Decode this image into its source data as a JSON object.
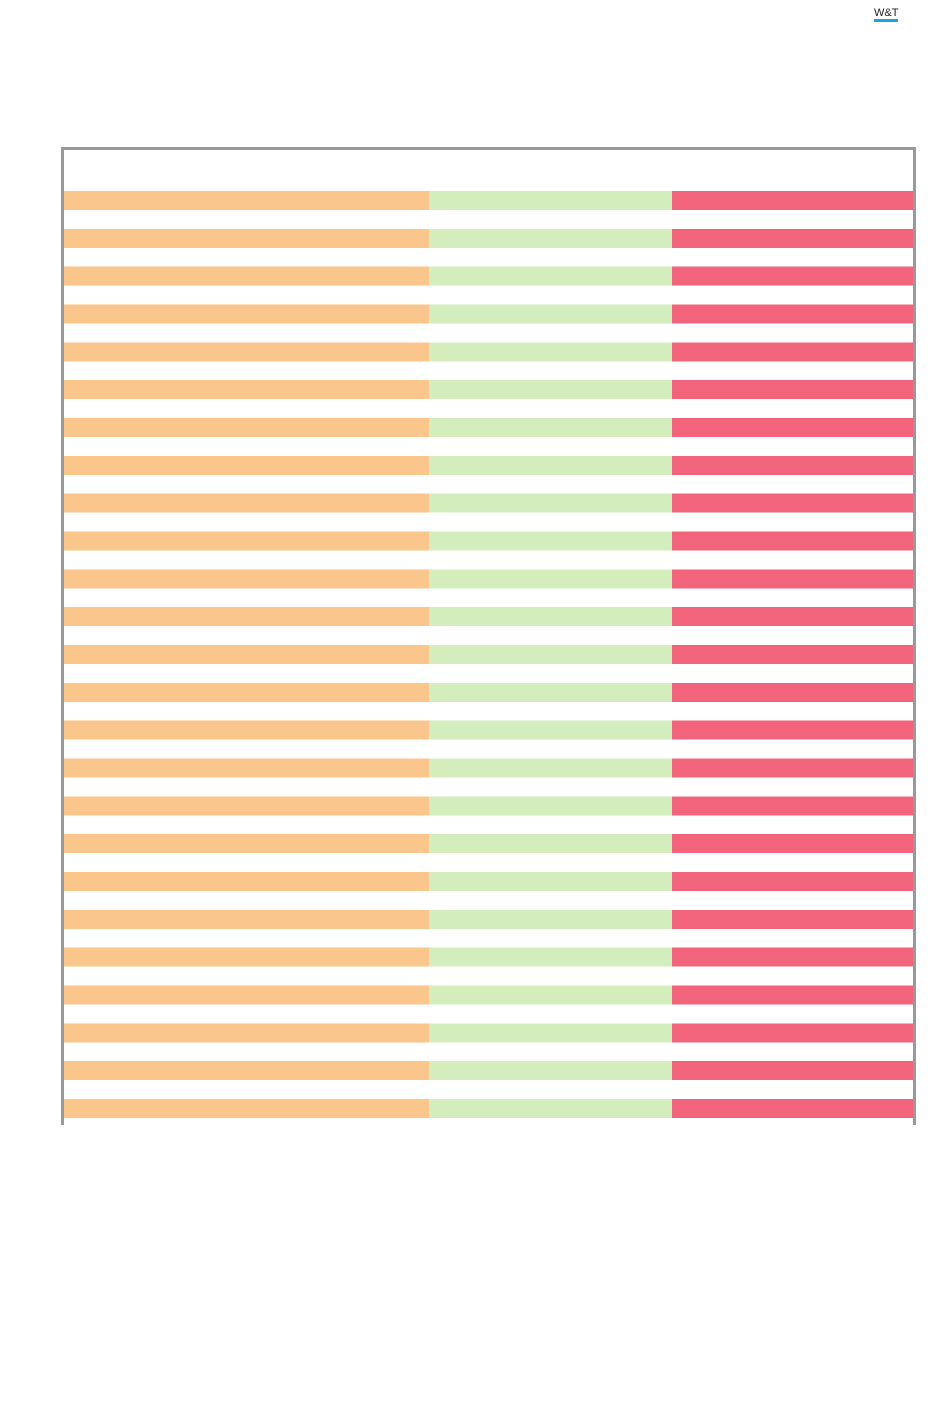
{
  "header": {
    "logo": "W&T"
  }
}
